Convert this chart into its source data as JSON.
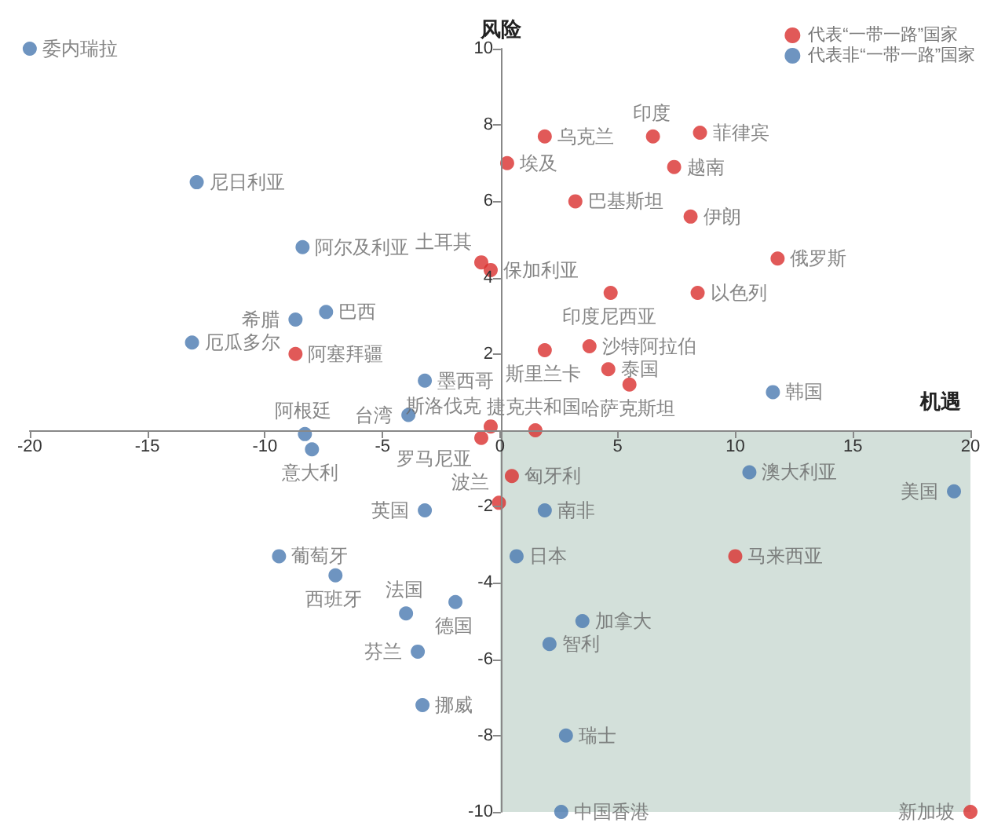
{
  "chart_data": {
    "type": "scatter",
    "xlabel": "机遇",
    "ylabel": "风险",
    "xlim": [
      -20,
      20
    ],
    "xticks": [
      -20,
      -15,
      -10,
      -5,
      0,
      5,
      10,
      15,
      20
    ],
    "ylim": [
      -10,
      10
    ],
    "yticks": [
      -10,
      -8,
      -6,
      -4,
      -2,
      {
        "value": 0,
        "label": null
      },
      2,
      4,
      6,
      8,
      10
    ],
    "grid": false,
    "legend": "top right",
    "marker": "circle",
    "bands": [
      {
        "axis": "x",
        "from": 0,
        "to": 20,
        "color": "#d3e0da"
      }
    ],
    "series": [
      {
        "name": "代表“一带一路”国家",
        "color": "#d9302e",
        "x": [
          -0.8,
          -0.4,
          -8.7,
          -0.4,
          -0.8,
          -0.05,
          1.9,
          6.5,
          8.5,
          0.3,
          7.4,
          3.2,
          8.1,
          11.8,
          4.7,
          8.4,
          1.9,
          3.8,
          4.6,
          5.5,
          1.5,
          0.5,
          10.0,
          20
        ],
        "values": [
          4.4,
          4.2,
          2.0,
          0.1,
          -0.2,
          -1.9,
          7.7,
          7.7,
          7.8,
          7.0,
          6.9,
          6.0,
          5.6,
          4.5,
          3.6,
          3.6,
          2.1,
          2.2,
          1.6,
          1.2,
          0.0,
          -1.2,
          -3.3,
          -10
        ],
        "value_labels": [
          "土耳其",
          "保加利亚",
          "阿塞拜疆",
          "斯洛伐克",
          "罗马尼亚",
          "波兰",
          "乌克兰",
          "印度",
          "菲律宾",
          "埃及",
          "越南",
          "巴基斯坦",
          "伊朗",
          "俄罗斯",
          "印度尼西亚",
          "以色列",
          "斯里兰卡",
          "沙特阿拉伯",
          "泰国",
          "哈萨克斯坦",
          "捷克共和国",
          "匈牙利",
          "马来西亚",
          "新加坡"
        ]
      },
      {
        "name": "代表非“一带一路”国家",
        "color": "#4a79b0",
        "x": [
          -20,
          -12.9,
          -8.4,
          -7.4,
          -8.7,
          -13.1,
          -3.2,
          -3.9,
          -8.3,
          -8.0,
          -3.2,
          -9.4,
          -7.0,
          -1.9,
          -4.0,
          -3.5,
          -3.3,
          11.6,
          1.9,
          0.7,
          10.6,
          19.3,
          3.5,
          2.1,
          2.8,
          2.6
        ],
        "values": [
          10,
          6.5,
          4.8,
          3.1,
          2.9,
          2.3,
          1.3,
          0.4,
          -0.1,
          -0.5,
          -2.1,
          -3.3,
          -3.8,
          -4.5,
          -4.8,
          -5.8,
          -7.2,
          1.0,
          -2.1,
          -3.3,
          -1.1,
          -1.6,
          -5.0,
          -5.6,
          -8.0,
          -10
        ],
        "value_labels": [
          "委内瑞拉",
          "尼日利亚",
          "阿尔及利亚",
          "巴西",
          "希腊",
          "厄瓜多尔",
          "墨西哥",
          "台湾",
          "阿根廷",
          "意大利",
          "英国",
          "葡萄牙",
          "西班牙",
          "德国",
          "法国",
          "芬兰",
          "挪威",
          "韩国",
          "南非",
          "日本",
          "澳大利亚",
          "美国",
          "加拿大",
          "智利",
          "瑞士",
          "中国香港"
        ]
      }
    ]
  }
}
